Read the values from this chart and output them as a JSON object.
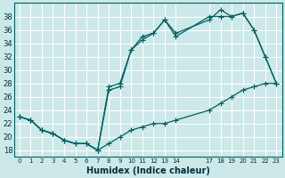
{
  "xlabel": "Humidex (Indice chaleur)",
  "ylabel": "",
  "bg_color": "#cce8e8",
  "grid_color": "#ffffff",
  "line_color": "#006060",
  "x_ticks": [
    0,
    1,
    2,
    3,
    4,
    5,
    6,
    7,
    8,
    9,
    10,
    11,
    12,
    13,
    14,
    17,
    18,
    19,
    20,
    21,
    22,
    23
  ],
  "xlim": [
    -0.5,
    23.5
  ],
  "ylim": [
    17,
    40
  ],
  "yticks": [
    18,
    20,
    22,
    24,
    26,
    28,
    30,
    32,
    34,
    36,
    38
  ],
  "line1_x": [
    0,
    1,
    2,
    3,
    4,
    5,
    6,
    7,
    8,
    9,
    10,
    11,
    12,
    13,
    14,
    17,
    18,
    19,
    20,
    21,
    22,
    23
  ],
  "line1_y": [
    23,
    22.5,
    21,
    20.5,
    19.5,
    19,
    19,
    18,
    19,
    20,
    21,
    21.5,
    22,
    22,
    22.5,
    24,
    25,
    26,
    27,
    27.5,
    28,
    28
  ],
  "line2_x": [
    0,
    1,
    2,
    3,
    4,
    5,
    6,
    7,
    8,
    9,
    10,
    11,
    12,
    13,
    14,
    17,
    18,
    19,
    20,
    21,
    22,
    23
  ],
  "line2_y": [
    23,
    22.5,
    21,
    20.5,
    19.5,
    19,
    19,
    18,
    27,
    27.5,
    33,
    34.5,
    35.5,
    37.5,
    35,
    38,
    38,
    38,
    38.5,
    36,
    32,
    28
  ],
  "line3_x": [
    0,
    1,
    2,
    3,
    4,
    5,
    6,
    7,
    8,
    9,
    10,
    11,
    12,
    13,
    14,
    17,
    18,
    19,
    20,
    21,
    22,
    23
  ],
  "line3_y": [
    23,
    22.5,
    21,
    20.5,
    19.5,
    19,
    19,
    18,
    27.5,
    28,
    33,
    35,
    35.5,
    37.5,
    35.5,
    37.5,
    39,
    38,
    38.5,
    36,
    32,
    28
  ]
}
